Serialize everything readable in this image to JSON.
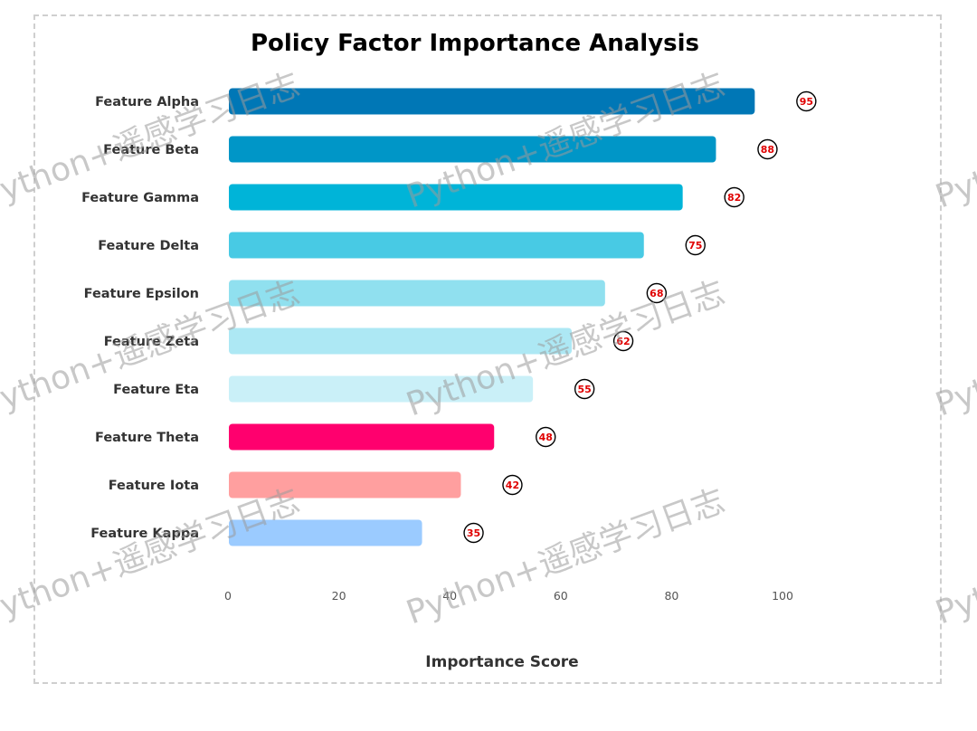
{
  "chart_data": {
    "type": "bar",
    "orientation": "horizontal",
    "title": "Policy Factor Importance Analysis",
    "xlabel": "Importance Score",
    "ylabel": "",
    "xlim": [
      0,
      100
    ],
    "xticks": [
      "0",
      "20",
      "40",
      "60",
      "80",
      "100"
    ],
    "grid": false,
    "categories": [
      "Feature Alpha",
      "Feature Beta",
      "Feature Gamma",
      "Feature Delta",
      "Feature Epsilon",
      "Feature Zeta",
      "Feature Eta",
      "Feature Theta",
      "Feature Iota",
      "Feature Kappa"
    ],
    "values": [
      95,
      88,
      82,
      75,
      68,
      62,
      55,
      48,
      42,
      35
    ],
    "value_labels": [
      "95",
      "88",
      "82",
      "75",
      "68",
      "62",
      "55",
      "48",
      "42",
      "35"
    ],
    "colors": [
      "#0077b6",
      "#0096c7",
      "#00b4d8",
      "#48cae4",
      "#90e0ef",
      "#ade8f4",
      "#caf0f8",
      "#ff006e",
      "#ff9f9f",
      "#9bcbff"
    ],
    "value_label_color": "#e00000"
  },
  "watermark": {
    "text": "Python+遥感学习日志"
  }
}
